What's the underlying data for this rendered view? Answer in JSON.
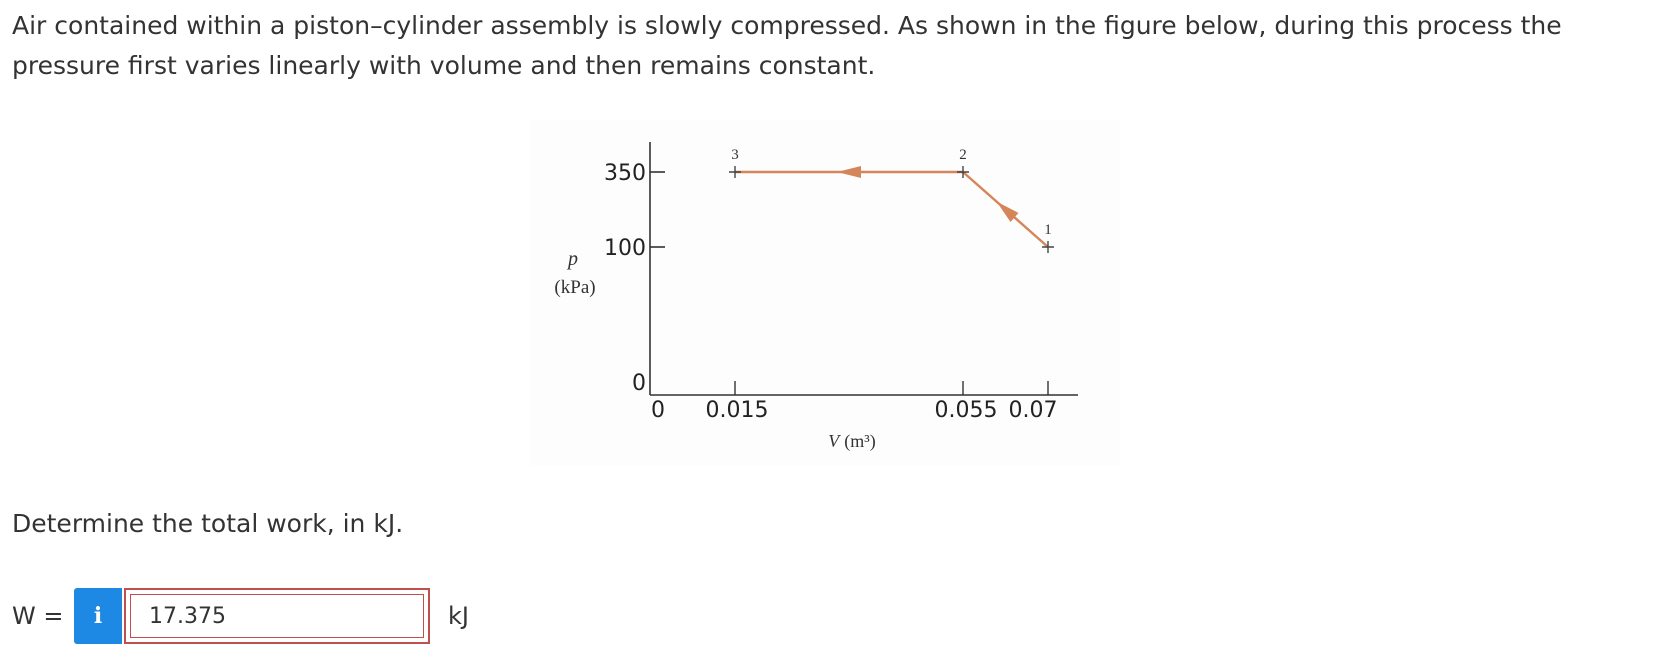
{
  "question": {
    "text": "Air contained within a piston–cylinder assembly is slowly compressed. As shown in the figure below, during this process the pressure first varies linearly with volume and then remains constant."
  },
  "figure": {
    "y_axis_symbol": "p",
    "y_axis_unit": "(kPa)",
    "x_axis_symbol": "V",
    "x_axis_unit": "(m³)",
    "y_ticks": [
      "350",
      "100",
      "0"
    ],
    "x_ticks": [
      "0",
      "0.015",
      "0.055",
      "0.07"
    ],
    "state_labels": [
      "1",
      "2",
      "3"
    ],
    "line_color": "#d4865a",
    "chart_data": {
      "type": "line",
      "x": [
        0.07,
        0.055,
        0.015
      ],
      "y": [
        100,
        350,
        350
      ],
      "point_labels": [
        "1",
        "2",
        "3"
      ],
      "xlabel": "V (m³)",
      "ylabel": "p (kPa)",
      "xlim": [
        0,
        0.07
      ],
      "ylim": [
        0,
        350
      ],
      "direction": "1 → 2 → 3"
    }
  },
  "prompt": {
    "text": "Determine the total work, in kJ."
  },
  "answer": {
    "label": "W =",
    "info_icon": "i",
    "value": "17.375",
    "unit": "kJ"
  }
}
